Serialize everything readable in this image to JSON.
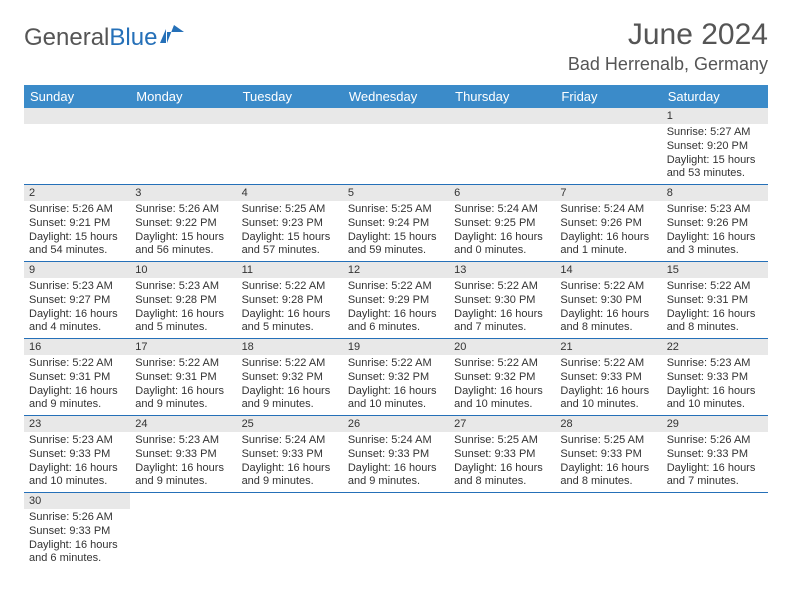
{
  "brand": {
    "part1": "General",
    "part2": "Blue"
  },
  "title": "June 2024",
  "location": "Bad Herrenalb, Germany",
  "colors": {
    "header_bg": "#3b8bc9",
    "border": "#2570b8",
    "daybar": "#e8e8e8",
    "text": "#333333",
    "brand_accent": "#2570b8"
  },
  "weekdays": [
    "Sunday",
    "Monday",
    "Tuesday",
    "Wednesday",
    "Thursday",
    "Friday",
    "Saturday"
  ],
  "weeks": [
    [
      null,
      null,
      null,
      null,
      null,
      null,
      {
        "n": "1",
        "sr": "Sunrise: 5:27 AM",
        "ss": "Sunset: 9:20 PM",
        "dl": "Daylight: 15 hours and 53 minutes."
      }
    ],
    [
      {
        "n": "2",
        "sr": "Sunrise: 5:26 AM",
        "ss": "Sunset: 9:21 PM",
        "dl": "Daylight: 15 hours and 54 minutes."
      },
      {
        "n": "3",
        "sr": "Sunrise: 5:26 AM",
        "ss": "Sunset: 9:22 PM",
        "dl": "Daylight: 15 hours and 56 minutes."
      },
      {
        "n": "4",
        "sr": "Sunrise: 5:25 AM",
        "ss": "Sunset: 9:23 PM",
        "dl": "Daylight: 15 hours and 57 minutes."
      },
      {
        "n": "5",
        "sr": "Sunrise: 5:25 AM",
        "ss": "Sunset: 9:24 PM",
        "dl": "Daylight: 15 hours and 59 minutes."
      },
      {
        "n": "6",
        "sr": "Sunrise: 5:24 AM",
        "ss": "Sunset: 9:25 PM",
        "dl": "Daylight: 16 hours and 0 minutes."
      },
      {
        "n": "7",
        "sr": "Sunrise: 5:24 AM",
        "ss": "Sunset: 9:26 PM",
        "dl": "Daylight: 16 hours and 1 minute."
      },
      {
        "n": "8",
        "sr": "Sunrise: 5:23 AM",
        "ss": "Sunset: 9:26 PM",
        "dl": "Daylight: 16 hours and 3 minutes."
      }
    ],
    [
      {
        "n": "9",
        "sr": "Sunrise: 5:23 AM",
        "ss": "Sunset: 9:27 PM",
        "dl": "Daylight: 16 hours and 4 minutes."
      },
      {
        "n": "10",
        "sr": "Sunrise: 5:23 AM",
        "ss": "Sunset: 9:28 PM",
        "dl": "Daylight: 16 hours and 5 minutes."
      },
      {
        "n": "11",
        "sr": "Sunrise: 5:22 AM",
        "ss": "Sunset: 9:28 PM",
        "dl": "Daylight: 16 hours and 5 minutes."
      },
      {
        "n": "12",
        "sr": "Sunrise: 5:22 AM",
        "ss": "Sunset: 9:29 PM",
        "dl": "Daylight: 16 hours and 6 minutes."
      },
      {
        "n": "13",
        "sr": "Sunrise: 5:22 AM",
        "ss": "Sunset: 9:30 PM",
        "dl": "Daylight: 16 hours and 7 minutes."
      },
      {
        "n": "14",
        "sr": "Sunrise: 5:22 AM",
        "ss": "Sunset: 9:30 PM",
        "dl": "Daylight: 16 hours and 8 minutes."
      },
      {
        "n": "15",
        "sr": "Sunrise: 5:22 AM",
        "ss": "Sunset: 9:31 PM",
        "dl": "Daylight: 16 hours and 8 minutes."
      }
    ],
    [
      {
        "n": "16",
        "sr": "Sunrise: 5:22 AM",
        "ss": "Sunset: 9:31 PM",
        "dl": "Daylight: 16 hours and 9 minutes."
      },
      {
        "n": "17",
        "sr": "Sunrise: 5:22 AM",
        "ss": "Sunset: 9:31 PM",
        "dl": "Daylight: 16 hours and 9 minutes."
      },
      {
        "n": "18",
        "sr": "Sunrise: 5:22 AM",
        "ss": "Sunset: 9:32 PM",
        "dl": "Daylight: 16 hours and 9 minutes."
      },
      {
        "n": "19",
        "sr": "Sunrise: 5:22 AM",
        "ss": "Sunset: 9:32 PM",
        "dl": "Daylight: 16 hours and 10 minutes."
      },
      {
        "n": "20",
        "sr": "Sunrise: 5:22 AM",
        "ss": "Sunset: 9:32 PM",
        "dl": "Daylight: 16 hours and 10 minutes."
      },
      {
        "n": "21",
        "sr": "Sunrise: 5:22 AM",
        "ss": "Sunset: 9:33 PM",
        "dl": "Daylight: 16 hours and 10 minutes."
      },
      {
        "n": "22",
        "sr": "Sunrise: 5:23 AM",
        "ss": "Sunset: 9:33 PM",
        "dl": "Daylight: 16 hours and 10 minutes."
      }
    ],
    [
      {
        "n": "23",
        "sr": "Sunrise: 5:23 AM",
        "ss": "Sunset: 9:33 PM",
        "dl": "Daylight: 16 hours and 10 minutes."
      },
      {
        "n": "24",
        "sr": "Sunrise: 5:23 AM",
        "ss": "Sunset: 9:33 PM",
        "dl": "Daylight: 16 hours and 9 minutes."
      },
      {
        "n": "25",
        "sr": "Sunrise: 5:24 AM",
        "ss": "Sunset: 9:33 PM",
        "dl": "Daylight: 16 hours and 9 minutes."
      },
      {
        "n": "26",
        "sr": "Sunrise: 5:24 AM",
        "ss": "Sunset: 9:33 PM",
        "dl": "Daylight: 16 hours and 9 minutes."
      },
      {
        "n": "27",
        "sr": "Sunrise: 5:25 AM",
        "ss": "Sunset: 9:33 PM",
        "dl": "Daylight: 16 hours and 8 minutes."
      },
      {
        "n": "28",
        "sr": "Sunrise: 5:25 AM",
        "ss": "Sunset: 9:33 PM",
        "dl": "Daylight: 16 hours and 8 minutes."
      },
      {
        "n": "29",
        "sr": "Sunrise: 5:26 AM",
        "ss": "Sunset: 9:33 PM",
        "dl": "Daylight: 16 hours and 7 minutes."
      }
    ],
    [
      {
        "n": "30",
        "sr": "Sunrise: 5:26 AM",
        "ss": "Sunset: 9:33 PM",
        "dl": "Daylight: 16 hours and 6 minutes."
      },
      null,
      null,
      null,
      null,
      null,
      null
    ]
  ]
}
